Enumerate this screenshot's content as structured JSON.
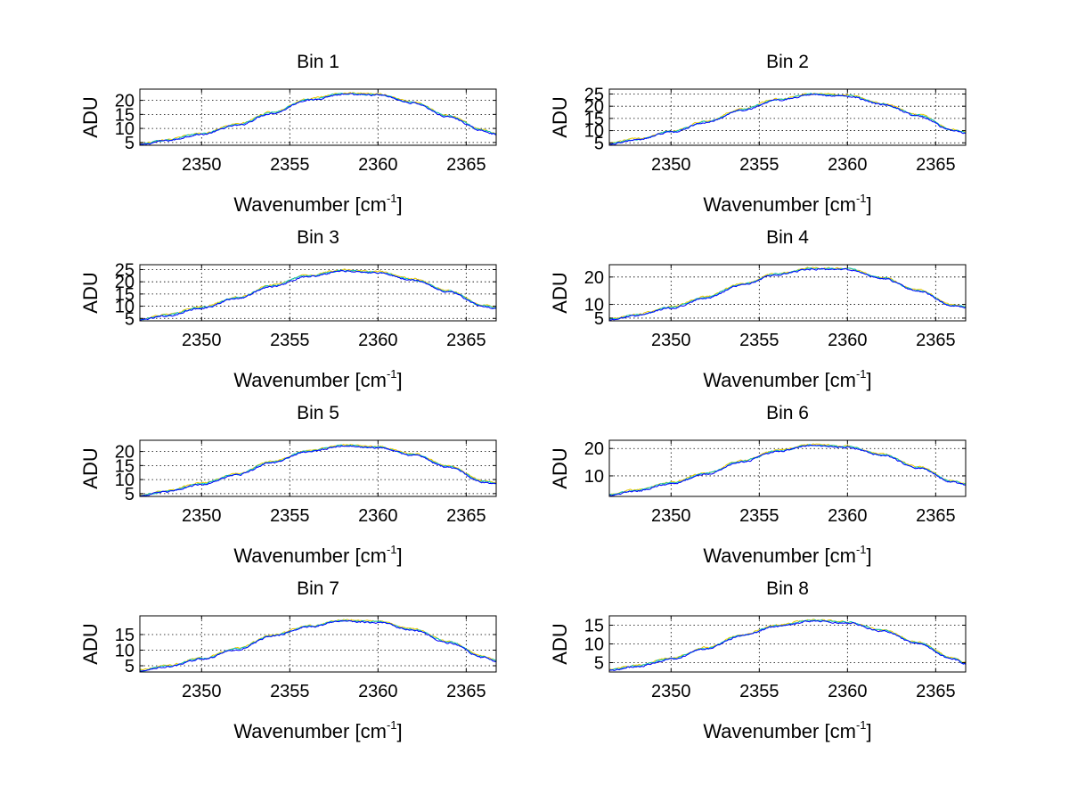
{
  "chart_data": [
    {
      "type": "line",
      "title": "Bin 1",
      "xlabel": "Wavenumber [cm",
      "xlabel_sup": "-1",
      "xlabel_end": "]",
      "ylabel": "ADU",
      "xlim": [
        2346.5,
        2366.7
      ],
      "ylim": [
        4,
        24
      ],
      "xticks": [
        2350,
        2355,
        2360,
        2365
      ],
      "xtick_labels": [
        "2350",
        "2355",
        "2360",
        "2365"
      ],
      "yticks": [
        5,
        10,
        15,
        20
      ],
      "ytick_labels": [
        "5",
        "10",
        "15",
        "20"
      ],
      "grid": true,
      "series_colors": [
        "#0000ff",
        "#00bfbf",
        "#e6c800"
      ],
      "profile": [
        [
          2346.5,
          4.3
        ],
        [
          2348,
          5.8
        ],
        [
          2350,
          8.0
        ],
        [
          2352,
          11.2
        ],
        [
          2354,
          15.5
        ],
        [
          2356,
          20.2
        ],
        [
          2358,
          22.2
        ],
        [
          2360,
          22.0
        ],
        [
          2362,
          19.2
        ],
        [
          2364,
          14.2
        ],
        [
          2366,
          9.2
        ],
        [
          2366.7,
          8.0
        ]
      ]
    },
    {
      "type": "line",
      "title": "Bin 2",
      "xlabel": "Wavenumber [cm",
      "xlabel_sup": "-1",
      "xlabel_end": "]",
      "ylabel": "ADU",
      "xlim": [
        2346.5,
        2366.7
      ],
      "ylim": [
        4,
        27
      ],
      "xticks": [
        2350,
        2355,
        2360,
        2365
      ],
      "xtick_labels": [
        "2350",
        "2355",
        "2360",
        "2365"
      ],
      "yticks": [
        5,
        10,
        15,
        20,
        25
      ],
      "ytick_labels": [
        "5",
        "10",
        "15",
        "20",
        "25"
      ],
      "grid": true,
      "series_colors": [
        "#0000ff",
        "#00bfbf",
        "#e6c800"
      ],
      "profile": [
        [
          2346.5,
          4.6
        ],
        [
          2348,
          6.3
        ],
        [
          2350,
          9.5
        ],
        [
          2352,
          13.5
        ],
        [
          2354,
          18.5
        ],
        [
          2356,
          22.5
        ],
        [
          2358,
          24.8
        ],
        [
          2360,
          24.2
        ],
        [
          2362,
          20.8
        ],
        [
          2364,
          16.2
        ],
        [
          2366,
          10.2
        ],
        [
          2366.7,
          9.0
        ]
      ]
    },
    {
      "type": "line",
      "title": "Bin 3",
      "xlabel": "Wavenumber [cm",
      "xlabel_sup": "-1",
      "xlabel_end": "]",
      "ylabel": "ADU",
      "xlim": [
        2346.5,
        2366.7
      ],
      "ylim": [
        4,
        27
      ],
      "xticks": [
        2350,
        2355,
        2360,
        2365
      ],
      "xtick_labels": [
        "2350",
        "2355",
        "2360",
        "2365"
      ],
      "yticks": [
        5,
        10,
        15,
        20,
        25
      ],
      "ytick_labels": [
        "5",
        "10",
        "15",
        "20",
        "25"
      ],
      "grid": true,
      "series_colors": [
        "#0000ff",
        "#00bfbf",
        "#e6c800"
      ],
      "profile": [
        [
          2346.5,
          4.5
        ],
        [
          2348,
          6.2
        ],
        [
          2350,
          9.3
        ],
        [
          2352,
          13.3
        ],
        [
          2354,
          18.3
        ],
        [
          2356,
          22.3
        ],
        [
          2358,
          24.5
        ],
        [
          2360,
          23.8
        ],
        [
          2362,
          20.8
        ],
        [
          2364,
          16.0
        ],
        [
          2366,
          10.2
        ],
        [
          2366.7,
          9.2
        ]
      ]
    },
    {
      "type": "line",
      "title": "Bin 4",
      "xlabel": "Wavenumber [cm",
      "xlabel_sup": "-1",
      "xlabel_end": "]",
      "ylabel": "ADU",
      "xlim": [
        2346.5,
        2366.7
      ],
      "ylim": [
        4,
        24.5
      ],
      "xticks": [
        2350,
        2355,
        2360,
        2365
      ],
      "xtick_labels": [
        "2350",
        "2355",
        "2360",
        "2365"
      ],
      "yticks": [
        5,
        10,
        20
      ],
      "ytick_labels": [
        "5",
        "10",
        "20"
      ],
      "grid": true,
      "series_colors": [
        "#0000ff",
        "#00bfbf",
        "#e6c800"
      ],
      "profile": [
        [
          2346.5,
          4.5
        ],
        [
          2348,
          6.0
        ],
        [
          2350,
          8.8
        ],
        [
          2352,
          12.5
        ],
        [
          2354,
          17.2
        ],
        [
          2356,
          21.0
        ],
        [
          2358,
          23.0
        ],
        [
          2360,
          22.8
        ],
        [
          2362,
          19.5
        ],
        [
          2364,
          15.0
        ],
        [
          2366,
          9.6
        ],
        [
          2366.7,
          9.0
        ]
      ]
    },
    {
      "type": "line",
      "title": "Bin 5",
      "xlabel": "Wavenumber [cm",
      "xlabel_sup": "-1",
      "xlabel_end": "]",
      "ylabel": "ADU",
      "xlim": [
        2346.5,
        2366.7
      ],
      "ylim": [
        4,
        24
      ],
      "xticks": [
        2350,
        2355,
        2360,
        2365
      ],
      "xtick_labels": [
        "2350",
        "2355",
        "2360",
        "2365"
      ],
      "yticks": [
        5,
        10,
        15,
        20
      ],
      "ytick_labels": [
        "5",
        "10",
        "15",
        "20"
      ],
      "grid": true,
      "series_colors": [
        "#0000ff",
        "#00bfbf",
        "#e6c800"
      ],
      "profile": [
        [
          2346.5,
          4.3
        ],
        [
          2348,
          5.8
        ],
        [
          2350,
          8.4
        ],
        [
          2352,
          11.8
        ],
        [
          2354,
          16.2
        ],
        [
          2356,
          20.0
        ],
        [
          2358,
          22.0
        ],
        [
          2360,
          21.5
        ],
        [
          2362,
          18.8
        ],
        [
          2364,
          14.5
        ],
        [
          2366,
          9.2
        ],
        [
          2366.7,
          8.6
        ]
      ]
    },
    {
      "type": "line",
      "title": "Bin 6",
      "xlabel": "Wavenumber [cm",
      "xlabel_sup": "-1",
      "xlabel_end": "]",
      "ylabel": "ADU",
      "xlim": [
        2346.5,
        2366.7
      ],
      "ylim": [
        2.5,
        23
      ],
      "xticks": [
        2350,
        2355,
        2360,
        2365
      ],
      "xtick_labels": [
        "2350",
        "2355",
        "2360",
        "2365"
      ],
      "yticks": [
        10,
        20
      ],
      "ytick_labels": [
        "10",
        "20"
      ],
      "grid": true,
      "series_colors": [
        "#0000ff",
        "#00bfbf",
        "#e6c800"
      ],
      "profile": [
        [
          2346.5,
          3.0
        ],
        [
          2348,
          4.6
        ],
        [
          2350,
          7.4
        ],
        [
          2352,
          10.8
        ],
        [
          2354,
          15.2
        ],
        [
          2356,
          19.0
        ],
        [
          2358,
          21.2
        ],
        [
          2360,
          20.5
        ],
        [
          2362,
          17.6
        ],
        [
          2364,
          13.0
        ],
        [
          2366,
          7.8
        ],
        [
          2366.7,
          6.8
        ]
      ]
    },
    {
      "type": "line",
      "title": "Bin 7",
      "xlabel": "Wavenumber [cm",
      "xlabel_sup": "-1",
      "xlabel_end": "]",
      "ylabel": "ADU",
      "xlim": [
        2346.5,
        2366.7
      ],
      "ylim": [
        3,
        21
      ],
      "xticks": [
        2350,
        2355,
        2360,
        2365
      ],
      "xtick_labels": [
        "2350",
        "2355",
        "2360",
        "2365"
      ],
      "yticks": [
        5,
        10,
        15
      ],
      "ytick_labels": [
        "5",
        "10",
        "15"
      ],
      "grid": true,
      "series_colors": [
        "#0000ff",
        "#00bfbf",
        "#e6c800"
      ],
      "profile": [
        [
          2346.5,
          3.3
        ],
        [
          2348,
          4.8
        ],
        [
          2350,
          7.2
        ],
        [
          2352,
          10.3
        ],
        [
          2354,
          14.5
        ],
        [
          2356,
          17.5
        ],
        [
          2358,
          19.4
        ],
        [
          2360,
          19.0
        ],
        [
          2362,
          16.5
        ],
        [
          2364,
          12.5
        ],
        [
          2366,
          7.8
        ],
        [
          2366.7,
          6.5
        ]
      ]
    },
    {
      "type": "line",
      "title": "Bin 8",
      "xlabel": "Wavenumber [cm",
      "xlabel_sup": "-1",
      "xlabel_end": "]",
      "ylabel": "ADU",
      "xlim": [
        2346.5,
        2366.7
      ],
      "ylim": [
        2.5,
        17.5
      ],
      "xticks": [
        2350,
        2355,
        2360,
        2365
      ],
      "xtick_labels": [
        "2350",
        "2355",
        "2360",
        "2365"
      ],
      "yticks": [
        5,
        10,
        15
      ],
      "ytick_labels": [
        "5",
        "10",
        "15"
      ],
      "grid": true,
      "series_colors": [
        "#0000ff",
        "#00bfbf",
        "#e6c800"
      ],
      "profile": [
        [
          2346.5,
          3.0
        ],
        [
          2348,
          4.0
        ],
        [
          2350,
          6.0
        ],
        [
          2352,
          8.8
        ],
        [
          2354,
          12.2
        ],
        [
          2356,
          14.8
        ],
        [
          2358,
          16.2
        ],
        [
          2360,
          15.7
        ],
        [
          2362,
          13.5
        ],
        [
          2364,
          10.2
        ],
        [
          2366,
          6.0
        ],
        [
          2366.7,
          4.8
        ]
      ]
    }
  ]
}
